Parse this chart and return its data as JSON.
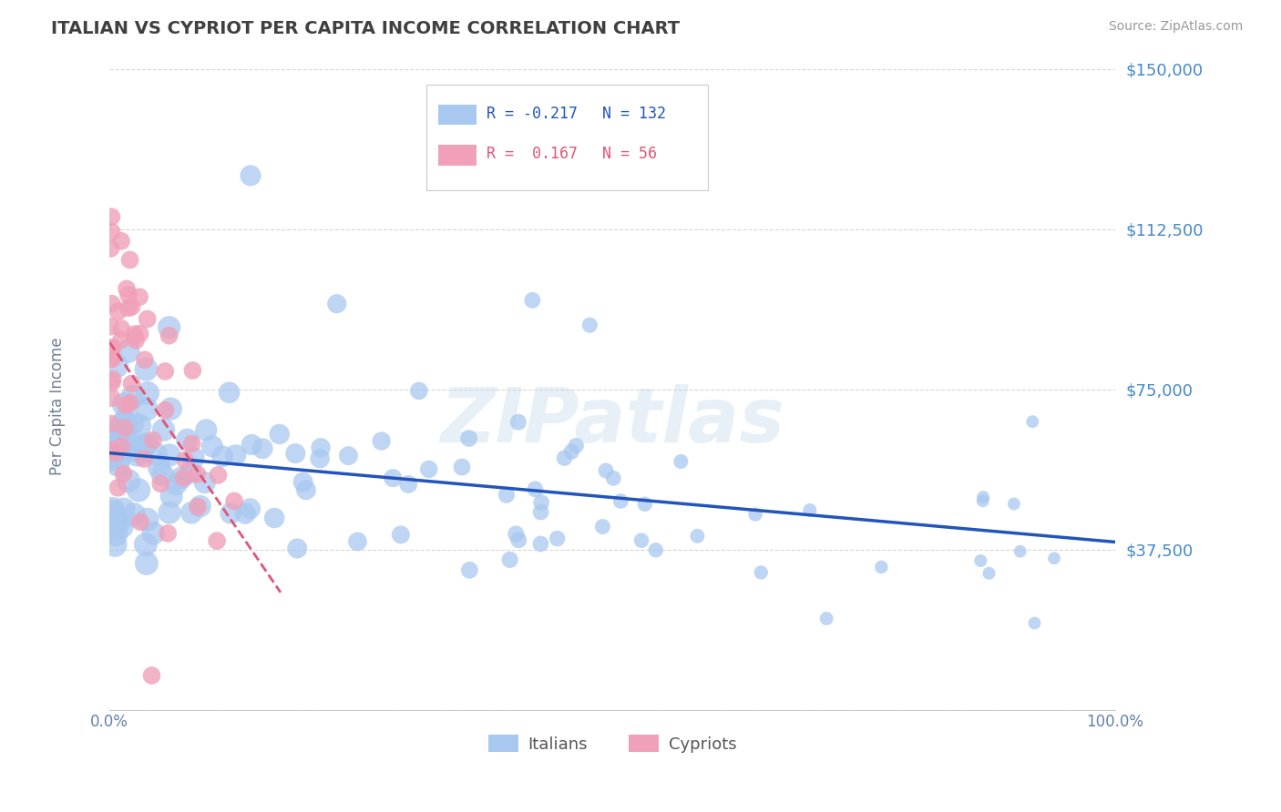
{
  "title": "ITALIAN VS CYPRIOT PER CAPITA INCOME CORRELATION CHART",
  "source": "Source: ZipAtlas.com",
  "ylabel": "Per Capita Income",
  "yticks": [
    0,
    37500,
    75000,
    112500,
    150000
  ],
  "ytick_labels": [
    "",
    "$37,500",
    "$75,000",
    "$112,500",
    "$150,000"
  ],
  "xtick_labels": [
    "0.0%",
    "100.0%"
  ],
  "legend_italians": "Italians",
  "legend_cypriots": "Cypriots",
  "R_italians": -0.217,
  "N_italians": 132,
  "R_cypriots": 0.167,
  "N_cypriots": 56,
  "italian_color": "#a8c8f0",
  "cypriot_color": "#f0a0b8",
  "italian_line_color": "#2255bb",
  "cypriot_line_color": "#e05575",
  "watermark": "ZIPatlas",
  "background_color": "#ffffff",
  "grid_color": "#cccccc",
  "title_color": "#404040",
  "ytick_color": "#4488cc",
  "seed": 42,
  "italian_sizes_low": 300,
  "italian_sizes_high": 150
}
